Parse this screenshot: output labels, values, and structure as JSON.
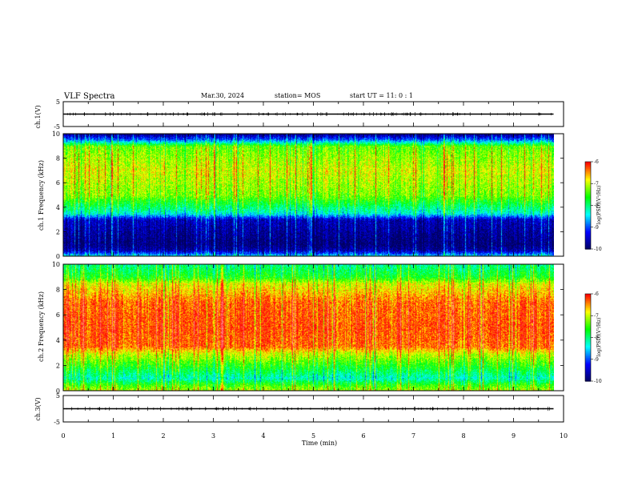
{
  "header": {
    "title": "VLF Spectra",
    "date": "Mar.30, 2024",
    "station": "station= MOS",
    "start": "start UT =   11: 0  : 1"
  },
  "colors": {
    "spectrogram_scale": [
      "#000060",
      "#0000ff",
      "#00ffff",
      "#00ff00",
      "#ffff00",
      "#ff0000",
      "#ffffff"
    ],
    "waveform": "#000000"
  },
  "chart_data": [
    {
      "type": "line",
      "panel": "ch1-waveform",
      "ylabel": "ch.1(V)",
      "ylim": [
        -5,
        5
      ],
      "y_ticklabels": [
        "5",
        "-5"
      ],
      "x": [
        0,
        9.8
      ],
      "y": [
        0,
        0
      ]
    },
    {
      "type": "heatmap",
      "panel": "ch1-spectrogram",
      "ylabel": "ch.1 Frequency (kHz)",
      "ylim": [
        0,
        10
      ],
      "y_ticklabels": [
        "0",
        "2",
        "4",
        "6",
        "8",
        "10"
      ],
      "x_range_min": [
        0,
        9.8
      ],
      "frequency_bands_kHz": [
        0,
        0.5,
        1,
        3,
        3.5,
        5,
        7,
        9,
        9.5,
        10
      ],
      "band_log_psd": [
        -8.3,
        -9.6,
        -9.9,
        -9.5,
        -8.3,
        -7.2,
        -6.9,
        -7.3,
        -8.8,
        -9.8
      ],
      "colorbar": {
        "label": "log(PSD)(V²/Hz)",
        "range": [
          -10,
          -6
        ],
        "ticklabels": [
          "-6",
          "-7",
          "-8",
          "-9",
          "-10"
        ]
      }
    },
    {
      "type": "heatmap",
      "panel": "ch2-spectrogram",
      "ylabel": "ch.2 Frequency (kHz)",
      "ylim": [
        0,
        10
      ],
      "y_ticklabels": [
        "0",
        "2",
        "4",
        "6",
        "8",
        "10"
      ],
      "x_range_min": [
        0,
        9.8
      ],
      "frequency_bands_kHz": [
        0,
        0.5,
        1,
        3,
        3.5,
        5,
        7,
        8.5,
        9,
        10
      ],
      "band_log_psd": [
        -7.0,
        -7.5,
        -8.2,
        -6.9,
        -6.3,
        -6.2,
        -6.3,
        -6.9,
        -7.6,
        -8.0
      ],
      "colorbar": {
        "label": "log(PSD)(V²/Hz)",
        "range": [
          -10,
          -6
        ],
        "ticklabels": [
          "-6",
          "-7",
          "-8",
          "-9",
          "-10"
        ]
      }
    },
    {
      "type": "line",
      "panel": "ch3-waveform",
      "ylabel": "ch.3(V)",
      "ylim": [
        -5,
        5
      ],
      "y_ticklabels": [
        "5",
        "-5"
      ],
      "x": [
        0,
        9.8
      ],
      "y": [
        0,
        0
      ]
    }
  ],
  "xaxis": {
    "label": "Time (min)",
    "range": [
      0,
      10
    ],
    "ticklabels": [
      "0",
      "1",
      "2",
      "3",
      "4",
      "5",
      "6",
      "7",
      "8",
      "9",
      "10"
    ]
  }
}
